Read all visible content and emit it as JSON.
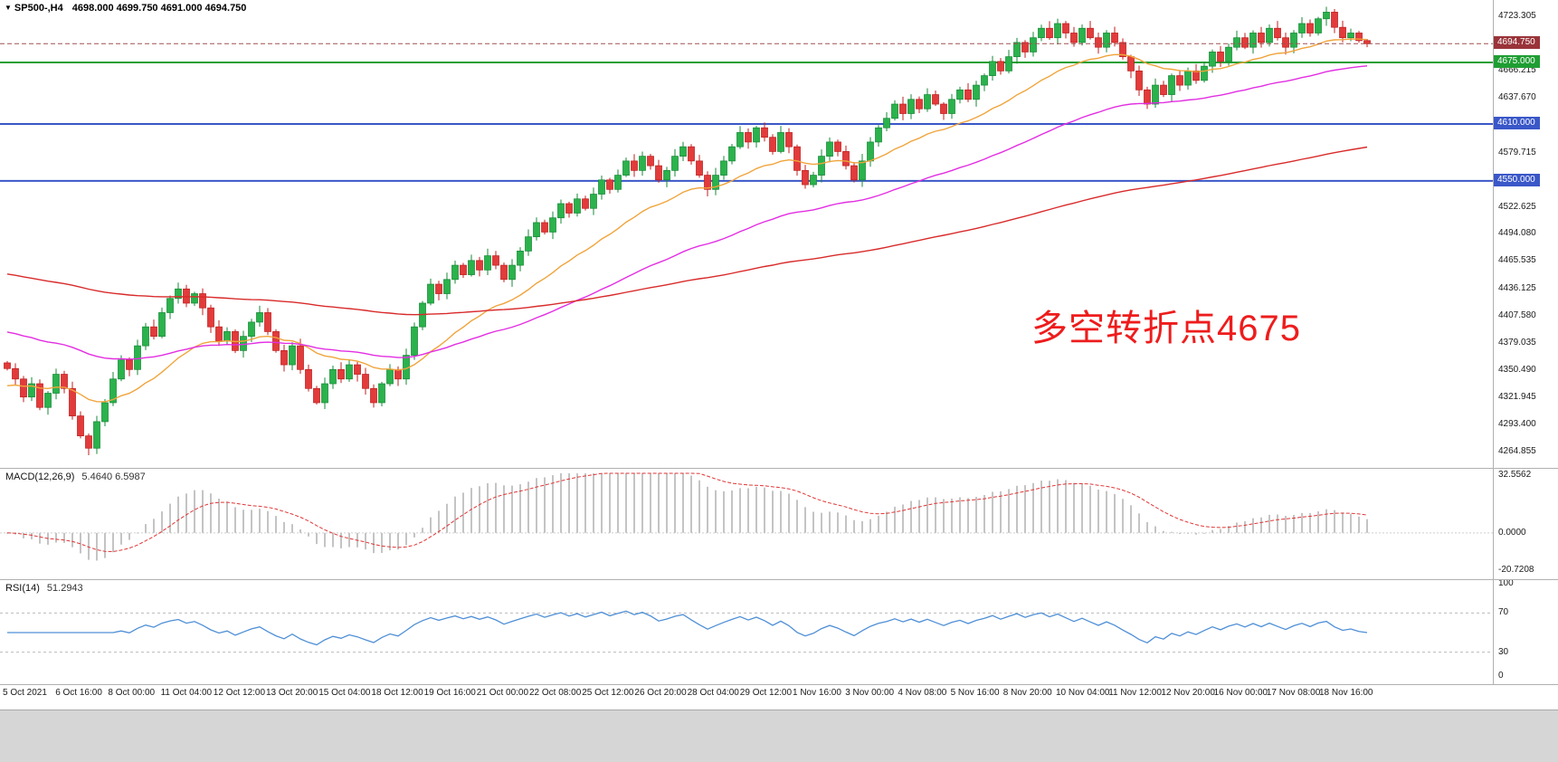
{
  "window": {
    "title_marker": "▼",
    "symbol": "SP500-,H4",
    "ohlc_text": "4698.000 4699.750 4691.000 4694.750"
  },
  "annotation": {
    "text": "多空转折点4675",
    "color": "#ee1c1c"
  },
  "price_axis": {
    "labels": [
      "4723.305",
      "4666.215",
      "4637.670",
      "4579.715",
      "4522.625",
      "4494.080",
      "4465.535",
      "4436.125",
      "4407.580",
      "4379.035",
      "4350.490",
      "4321.945",
      "4293.400",
      "4264.855"
    ],
    "boxed": [
      {
        "text": "4694.750",
        "value": 4694.75,
        "bg": "#99343a"
      },
      {
        "text": "4675.000",
        "value": 4675.0,
        "bg": "#1f9e33"
      },
      {
        "text": "4610.000",
        "value": 4610.0,
        "bg": "#3a57c8"
      },
      {
        "text": "4550.000",
        "value": 4550.0,
        "bg": "#3a57c8"
      }
    ]
  },
  "levels": [
    {
      "value": 4675.0,
      "color": "#1f9e33",
      "width": 2
    },
    {
      "value": 4610.0,
      "color": "#3a57c8",
      "width": 2
    },
    {
      "value": 4550.0,
      "color": "#3a57c8",
      "width": 2
    }
  ],
  "current_price": {
    "value": 4694.75,
    "color": "#a05050"
  },
  "time_axis": {
    "labels": [
      "5 Oct 2021",
      "6 Oct 16:00",
      "8 Oct 00:00",
      "11 Oct 04:00",
      "12 Oct 12:00",
      "13 Oct 20:00",
      "15 Oct 04:00",
      "18 Oct 12:00",
      "19 Oct 16:00",
      "21 Oct 00:00",
      "22 Oct 08:00",
      "25 Oct 12:00",
      "26 Oct 20:00",
      "28 Oct 04:00",
      "29 Oct 12:00",
      "1 Nov 16:00",
      "3 Nov 00:00",
      "4 Nov 08:00",
      "5 Nov 16:00",
      "8 Nov 20:00",
      "10 Nov 04:00",
      "11 Nov 12:00",
      "12 Nov 20:00",
      "16 Nov 00:00",
      "17 Nov 08:00",
      "18 Nov 16:00"
    ]
  },
  "macd_panel": {
    "label": "MACD(12,26,9)",
    "values": "5.4640 6.5987",
    "axis_labels": [
      "32.5562",
      "0.0000",
      "-20.7208"
    ],
    "axis_values": [
      32.5562,
      0,
      -20.7208
    ],
    "range": [
      -24,
      34
    ],
    "hist_color": "#c4c4c4",
    "signal_color": "#e03636"
  },
  "rsi_panel": {
    "label": "RSI(14)",
    "value": "51.2943",
    "axis_labels": [
      "100",
      "70",
      "30",
      "0"
    ],
    "axis_values": [
      100,
      70,
      30,
      0
    ],
    "levels": [
      70,
      30
    ],
    "line_color": "#4f8fd6",
    "range": [
      0,
      100
    ]
  },
  "chart_data": {
    "type": "candlestick",
    "title": "SP500-,H4",
    "symbol": "SP500-",
    "timeframe": "H4",
    "x_start": "5 Oct 2021",
    "x_end": "18 Nov 16:00",
    "y_range": [
      4252,
      4737
    ],
    "last_candle": {
      "open": 4698.0,
      "high": 4699.75,
      "low": 4691.0,
      "close": 4694.75
    },
    "up_color": "#2bb24c",
    "down_color": "#e23b3b",
    "closes": [
      4352,
      4341,
      4322,
      4336,
      4311,
      4326,
      4346,
      4331,
      4302,
      4281,
      4268,
      4296,
      4316,
      4341,
      4361,
      4351,
      4376,
      4396,
      4386,
      4411,
      4426,
      4436,
      4421,
      4431,
      4416,
      4396,
      4381,
      4391,
      4371,
      4386,
      4401,
      4411,
      4391,
      4371,
      4356,
      4376,
      4351,
      4331,
      4316,
      4336,
      4351,
      4341,
      4356,
      4346,
      4331,
      4316,
      4336,
      4351,
      4341,
      4366,
      4396,
      4421,
      4441,
      4431,
      4446,
      4461,
      4451,
      4466,
      4456,
      4471,
      4461,
      4446,
      4461,
      4476,
      4491,
      4506,
      4496,
      4511,
      4526,
      4516,
      4531,
      4521,
      4536,
      4551,
      4541,
      4556,
      4571,
      4561,
      4576,
      4566,
      4551,
      4561,
      4576,
      4586,
      4571,
      4556,
      4541,
      4556,
      4571,
      4586,
      4601,
      4591,
      4606,
      4596,
      4581,
      4601,
      4586,
      4561,
      4546,
      4556,
      4576,
      4591,
      4581,
      4566,
      4551,
      4571,
      4591,
      4606,
      4616,
      4631,
      4621,
      4636,
      4626,
      4641,
      4631,
      4621,
      4636,
      4646,
      4636,
      4651,
      4661,
      4676,
      4666,
      4681,
      4696,
      4686,
      4701,
      4711,
      4701,
      4716,
      4706,
      4696,
      4711,
      4701,
      4691,
      4706,
      4696,
      4681,
      4666,
      4646,
      4631,
      4651,
      4641,
      4661,
      4651,
      4666,
      4656,
      4671,
      4686,
      4676,
      4691,
      4701,
      4691,
      4706,
      4696,
      4711,
      4701,
      4691,
      4706,
      4716,
      4706,
      4721,
      4728,
      4712,
      4701,
      4706,
      4698,
      4694.75
    ],
    "moving_averages": [
      {
        "name": "ma-fast",
        "period": 20,
        "seed": 4332,
        "color": "#f0a43c"
      },
      {
        "name": "ma-mid",
        "period": 55,
        "seed": 4392,
        "color": "#e22ee2"
      },
      {
        "name": "ma-slow",
        "period": 160,
        "seed": 4453,
        "color": "#d92b2b"
      }
    ],
    "macd": {
      "fast": 12,
      "slow": 26,
      "signal": 9
    },
    "rsi": {
      "period": 14
    }
  }
}
